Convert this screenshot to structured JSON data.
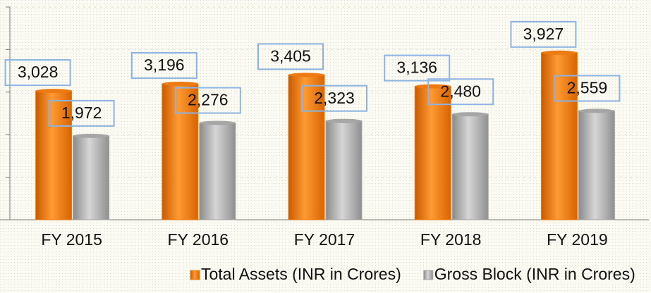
{
  "chart_data": {
    "type": "bar",
    "categories": [
      "FY 2015",
      "FY 2016",
      "FY 2017",
      "FY 2018",
      "FY 2019"
    ],
    "series": [
      {
        "name": "Total Assets (INR in Crores)",
        "color": "#ee7a12",
        "values": [
          3028,
          3196,
          3405,
          3136,
          3927
        ],
        "value_labels": [
          "3,028",
          "3,196",
          "3,405",
          "3,136",
          "3,927"
        ]
      },
      {
        "name": "Gross Block (INR in Crores)",
        "color": "#a6a6a6",
        "values": [
          1972,
          2276,
          2323,
          2480,
          2559
        ],
        "value_labels": [
          "1,972",
          "2,276",
          "2,323",
          "2,480",
          "2,559"
        ]
      }
    ],
    "ylim": [
      0,
      5000
    ],
    "yticks": [
      0,
      1000,
      2000,
      3000,
      4000,
      5000
    ],
    "grid": true
  }
}
